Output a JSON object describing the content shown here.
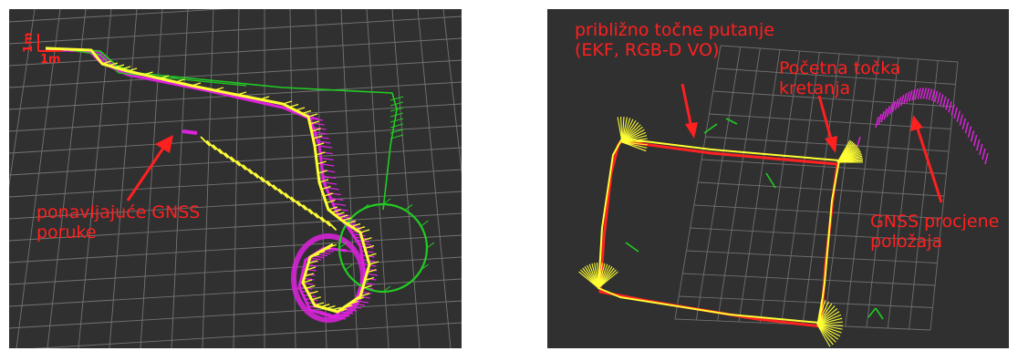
{
  "left_panel": {
    "scale_x_label": "1m",
    "scale_y_label": "1m",
    "annotation_lines": [
      "ponavljajuće GNSS",
      "poruke"
    ]
  },
  "right_panel": {
    "annotation_trajectories_lines": [
      "približno točne putanje",
      "(EKF, RGB-D VO)"
    ],
    "annotation_start_lines": [
      "Početna točka",
      "kretanja"
    ],
    "annotation_gnss_lines": [
      "GNSS procjene",
      "položaja"
    ]
  },
  "colors": {
    "background": "#303030",
    "grid": "#8a8a8a",
    "annotation": "#ff2020",
    "ekf": "#ffff33",
    "vo": "#ff2222",
    "gnss": "#dd22dd",
    "odom": "#22cc22"
  }
}
